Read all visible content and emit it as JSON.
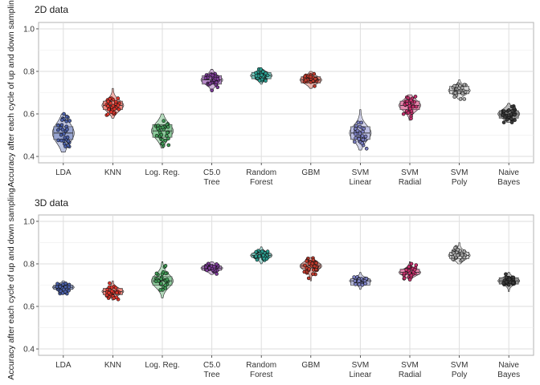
{
  "chart_data": [
    {
      "type": "scatter",
      "title": "2D data",
      "ylabel": "Accuracy after each cycle of up and down sampling",
      "ylim": [
        0.37,
        1.03
      ],
      "yticks": [
        0.4,
        0.6,
        0.8,
        1.0
      ],
      "ytick_labels": [
        "0.4",
        "0.6",
        "0.8",
        "1.0"
      ],
      "grid": true,
      "categories": [
        {
          "line1": "LDA",
          "line2": ""
        },
        {
          "line1": "KNN",
          "line2": ""
        },
        {
          "line1": "Log. Reg.",
          "line2": ""
        },
        {
          "line1": "C5.0",
          "line2": "Tree"
        },
        {
          "line1": "Random",
          "line2": "Forest"
        },
        {
          "line1": "GBM",
          "line2": ""
        },
        {
          "line1": "SVM",
          "line2": "Linear"
        },
        {
          "line1": "SVM",
          "line2": "Radial"
        },
        {
          "line1": "SVM",
          "line2": "Poly"
        },
        {
          "line1": "Naive",
          "line2": "Bayes"
        }
      ],
      "series": [
        {
          "center": 0.51,
          "spread": 0.045,
          "min": 0.42,
          "max": 0.6,
          "q1": 0.48,
          "q3": 0.54
        },
        {
          "center": 0.64,
          "spread": 0.025,
          "min": 0.58,
          "max": 0.72,
          "q1": 0.62,
          "q3": 0.66
        },
        {
          "center": 0.52,
          "spread": 0.035,
          "min": 0.44,
          "max": 0.6,
          "q1": 0.49,
          "q3": 0.55
        },
        {
          "center": 0.76,
          "spread": 0.02,
          "min": 0.71,
          "max": 0.81,
          "q1": 0.74,
          "q3": 0.78
        },
        {
          "center": 0.78,
          "spread": 0.015,
          "min": 0.74,
          "max": 0.81,
          "q1": 0.765,
          "q3": 0.795
        },
        {
          "center": 0.76,
          "spread": 0.017,
          "min": 0.72,
          "max": 0.8,
          "q1": 0.745,
          "q3": 0.775
        },
        {
          "center": 0.51,
          "spread": 0.035,
          "min": 0.43,
          "max": 0.62,
          "q1": 0.48,
          "q3": 0.54
        },
        {
          "center": 0.64,
          "spread": 0.025,
          "min": 0.57,
          "max": 0.69,
          "q1": 0.62,
          "q3": 0.66
        },
        {
          "center": 0.71,
          "spread": 0.018,
          "min": 0.67,
          "max": 0.76,
          "q1": 0.695,
          "q3": 0.73
        },
        {
          "center": 0.6,
          "spread": 0.02,
          "min": 0.56,
          "max": 0.65,
          "q1": 0.58,
          "q3": 0.615
        }
      ]
    },
    {
      "type": "scatter",
      "title": "3D data",
      "ylabel": "Accuracy after each cycle of up and down sampling",
      "ylim": [
        0.37,
        1.03
      ],
      "yticks": [
        0.4,
        0.6,
        0.8,
        1.0
      ],
      "ytick_labels": [
        "0.4",
        "0.6",
        "0.8",
        "1.0"
      ],
      "grid": true,
      "categories": [
        {
          "line1": "LDA",
          "line2": ""
        },
        {
          "line1": "KNN",
          "line2": ""
        },
        {
          "line1": "Log. Reg.",
          "line2": ""
        },
        {
          "line1": "C5.0",
          "line2": "Tree"
        },
        {
          "line1": "Random",
          "line2": "Forest"
        },
        {
          "line1": "GBM",
          "line2": ""
        },
        {
          "line1": "SVM",
          "line2": "Linear"
        },
        {
          "line1": "SVM",
          "line2": "Radial"
        },
        {
          "line1": "SVM",
          "line2": "Poly"
        },
        {
          "line1": "Naive",
          "line2": "Bayes"
        }
      ],
      "series": [
        {
          "center": 0.69,
          "spread": 0.012,
          "min": 0.66,
          "max": 0.72,
          "q1": 0.68,
          "q3": 0.7
        },
        {
          "center": 0.67,
          "spread": 0.015,
          "min": 0.63,
          "max": 0.72,
          "q1": 0.655,
          "q3": 0.685
        },
        {
          "center": 0.72,
          "spread": 0.03,
          "min": 0.64,
          "max": 0.81,
          "q1": 0.7,
          "q3": 0.74
        },
        {
          "center": 0.78,
          "spread": 0.013,
          "min": 0.75,
          "max": 0.81,
          "q1": 0.77,
          "q3": 0.79
        },
        {
          "center": 0.84,
          "spread": 0.014,
          "min": 0.8,
          "max": 0.88,
          "q1": 0.83,
          "q3": 0.85
        },
        {
          "center": 0.79,
          "spread": 0.02,
          "min": 0.72,
          "max": 0.83,
          "q1": 0.78,
          "q3": 0.8
        },
        {
          "center": 0.72,
          "spread": 0.013,
          "min": 0.68,
          "max": 0.76,
          "q1": 0.7,
          "q3": 0.73
        },
        {
          "center": 0.76,
          "spread": 0.015,
          "min": 0.72,
          "max": 0.81,
          "q1": 0.75,
          "q3": 0.775
        },
        {
          "center": 0.84,
          "spread": 0.018,
          "min": 0.8,
          "max": 0.9,
          "q1": 0.825,
          "q3": 0.855
        },
        {
          "center": 0.72,
          "spread": 0.015,
          "min": 0.67,
          "max": 0.76,
          "q1": 0.705,
          "q3": 0.735
        }
      ]
    }
  ],
  "colors": [
    "#4a5fa8",
    "#e0362c",
    "#3f9a55",
    "#7d3c98",
    "#2a9d8f",
    "#c0392b",
    "#7b7fc2",
    "#c7306d",
    "#a8a8a8",
    "#3a3a3a"
  ],
  "colors_light": [
    "#8a98cc",
    "#f07a70",
    "#7fc48f",
    "#b07dc4",
    "#6fc9bf",
    "#de7b70",
    "#b4b7e0",
    "#e37aa6",
    "#d6d6d6",
    "#8a8a8a"
  ]
}
